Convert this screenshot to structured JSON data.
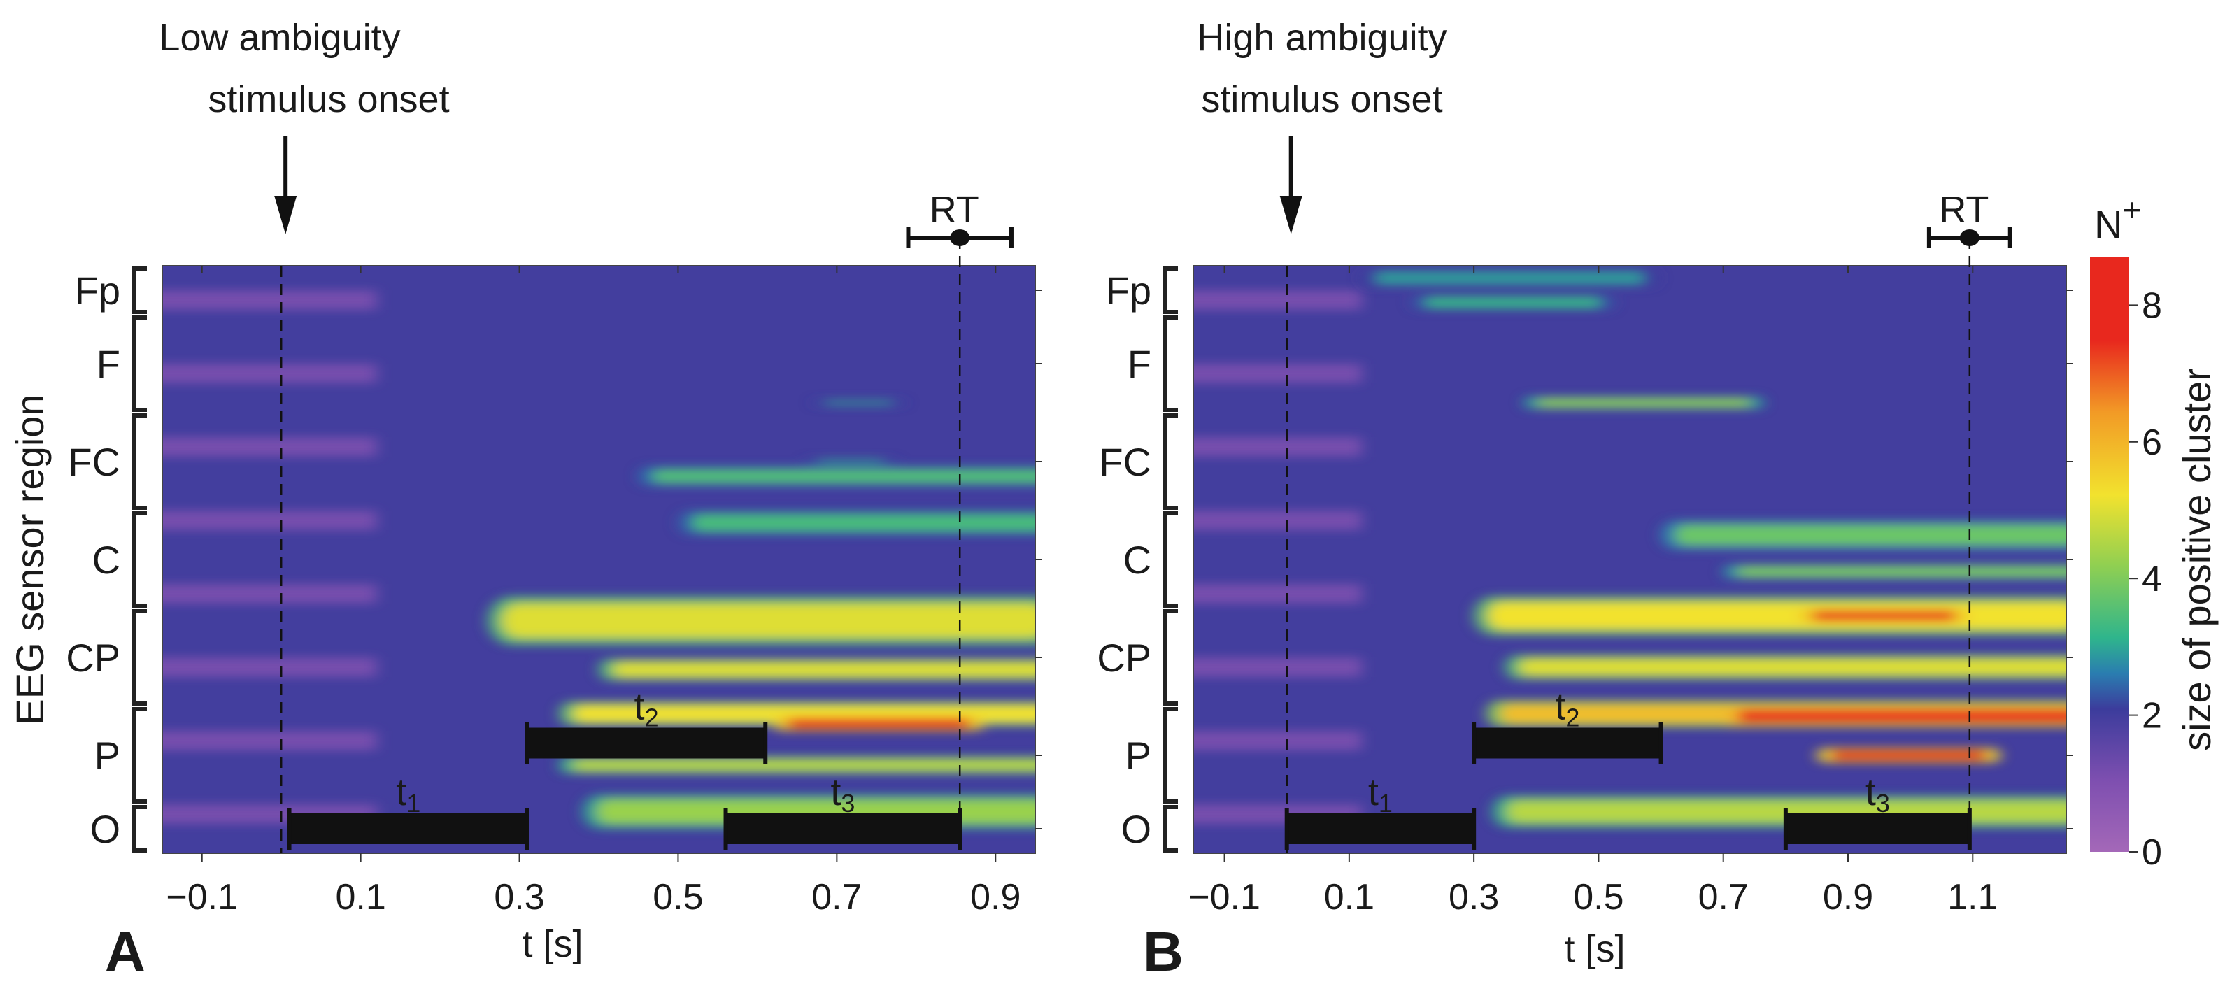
{
  "chart_data": [
    {
      "panel_label": "A",
      "type": "heatmap",
      "onset_label_line1": "Low ambiguity",
      "onset_label_line2": "stimulus onset",
      "xlabel": "t [s]",
      "ylabel": "EEG sensor region",
      "xlim": [
        -0.15,
        0.95
      ],
      "xticks": [
        -0.1,
        0.1,
        0.3,
        0.5,
        0.7,
        0.9
      ],
      "xtick_labels": [
        "−0.1",
        "0.1",
        "0.3",
        "0.5",
        "0.7",
        "0.9"
      ],
      "stimulus_onset": 0.0,
      "rt": {
        "label": "RT",
        "mean": 0.855,
        "err_low": 0.79,
        "err_high": 0.92
      },
      "regions": [
        {
          "label": "Fp",
          "rows": 2
        },
        {
          "label": "F",
          "rows": 4
        },
        {
          "label": "FC",
          "rows": 4
        },
        {
          "label": "C",
          "rows": 4
        },
        {
          "label": "CP",
          "rows": 4
        },
        {
          "label": "P",
          "rows": 4
        },
        {
          "label": "O",
          "rows": 2
        }
      ],
      "time_windows": [
        {
          "label": "t",
          "sub": "1",
          "start": 0.01,
          "end": 0.31,
          "row": 23
        },
        {
          "label": "t",
          "sub": "2",
          "start": 0.31,
          "end": 0.61,
          "row": 19.5
        },
        {
          "label": "t",
          "sub": "3",
          "start": 0.56,
          "end": 0.855,
          "row": 23
        }
      ],
      "hotspots": [
        {
          "t0": 0.45,
          "t1": 0.95,
          "y": 8.6,
          "h": 0.8,
          "v": 3.5
        },
        {
          "t0": 0.5,
          "t1": 0.95,
          "y": 10.5,
          "h": 1.0,
          "v": 3.4
        },
        {
          "t0": 0.26,
          "t1": 0.95,
          "y": 14.5,
          "h": 2.0,
          "v": 5.0
        },
        {
          "t0": 0.4,
          "t1": 0.95,
          "y": 16.5,
          "h": 0.9,
          "v": 5.0
        },
        {
          "t0": 0.35,
          "t1": 0.95,
          "y": 18.3,
          "h": 1.0,
          "v": 5.2
        },
        {
          "t0": 0.62,
          "t1": 0.85,
          "y": 18.7,
          "h": 0.6,
          "v": 8.0
        },
        {
          "t0": 0.35,
          "t1": 0.95,
          "y": 20.4,
          "h": 0.7,
          "v": 4.6
        },
        {
          "t0": 0.38,
          "t1": 0.95,
          "y": 22.3,
          "h": 1.4,
          "v": 4.3
        },
        {
          "t0": 0.67,
          "t1": 0.75,
          "y": 5.6,
          "h": 0.2,
          "v": 3.0
        },
        {
          "t0": 0.66,
          "t1": 0.74,
          "y": 8.0,
          "h": 0.2,
          "v": 3.0
        }
      ]
    },
    {
      "panel_label": "B",
      "type": "heatmap",
      "onset_label_line1": "High ambiguity",
      "onset_label_line2": "stimulus onset",
      "xlabel": "t [s]",
      "ylabel": "",
      "xlim": [
        -0.15,
        1.25
      ],
      "xticks": [
        -0.1,
        0.1,
        0.3,
        0.5,
        0.7,
        0.9,
        1.1
      ],
      "xtick_labels": [
        "−0.1",
        "0.1",
        "0.3",
        "0.5",
        "0.7",
        "0.9",
        "1.1"
      ],
      "stimulus_onset": 0.0,
      "rt": {
        "label": "RT",
        "mean": 1.095,
        "err_low": 1.03,
        "err_high": 1.16
      },
      "regions": [
        {
          "label": "Fp",
          "rows": 2
        },
        {
          "label": "F",
          "rows": 4
        },
        {
          "label": "FC",
          "rows": 4
        },
        {
          "label": "C",
          "rows": 4
        },
        {
          "label": "CP",
          "rows": 4
        },
        {
          "label": "P",
          "rows": 4
        },
        {
          "label": "O",
          "rows": 2
        }
      ],
      "time_windows": [
        {
          "label": "t",
          "sub": "1",
          "start": 0.0,
          "end": 0.3,
          "row": 23
        },
        {
          "label": "t",
          "sub": "2",
          "start": 0.3,
          "end": 0.6,
          "row": 19.5
        },
        {
          "label": "t",
          "sub": "3",
          "start": 0.8,
          "end": 1.095,
          "row": 23
        }
      ],
      "hotspots": [
        {
          "t0": 0.12,
          "t1": 0.55,
          "y": 0.5,
          "h": 0.7,
          "v": 2.9
        },
        {
          "t0": 0.2,
          "t1": 0.48,
          "y": 1.5,
          "h": 0.6,
          "v": 3.2
        },
        {
          "t0": 0.38,
          "t1": 0.72,
          "y": 5.6,
          "h": 0.5,
          "v": 4.2
        },
        {
          "t0": 0.6,
          "t1": 1.25,
          "y": 11.0,
          "h": 1.2,
          "v": 3.8
        },
        {
          "t0": 0.7,
          "t1": 1.25,
          "y": 12.5,
          "h": 0.6,
          "v": 4.0
        },
        {
          "t0": 0.3,
          "t1": 1.25,
          "y": 14.3,
          "h": 1.6,
          "v": 5.2
        },
        {
          "t0": 0.82,
          "t1": 1.05,
          "y": 14.3,
          "h": 0.6,
          "v": 8.0
        },
        {
          "t0": 0.35,
          "t1": 1.25,
          "y": 16.4,
          "h": 1.0,
          "v": 5.0
        },
        {
          "t0": 0.32,
          "t1": 1.25,
          "y": 18.3,
          "h": 1.1,
          "v": 5.8
        },
        {
          "t0": 0.7,
          "t1": 1.25,
          "y": 18.4,
          "h": 0.8,
          "v": 8.4
        },
        {
          "t0": 0.85,
          "t1": 1.1,
          "y": 20.0,
          "h": 0.6,
          "v": 7.8
        },
        {
          "t0": 0.33,
          "t1": 1.25,
          "y": 22.3,
          "h": 1.3,
          "v": 4.6
        }
      ]
    }
  ],
  "colorbar": {
    "title_main": "N",
    "title_sup": "+",
    "label": "size of positive cluster",
    "min": 0,
    "max": 8.7,
    "ticks": [
      0,
      2,
      4,
      6,
      8
    ],
    "tick_labels": [
      "0",
      "2",
      "4",
      "6",
      "8"
    ],
    "colors": [
      "#9a5ab3",
      "#3c3c9c",
      "#2fb58c",
      "#f2e22e",
      "#e8281e"
    ]
  }
}
